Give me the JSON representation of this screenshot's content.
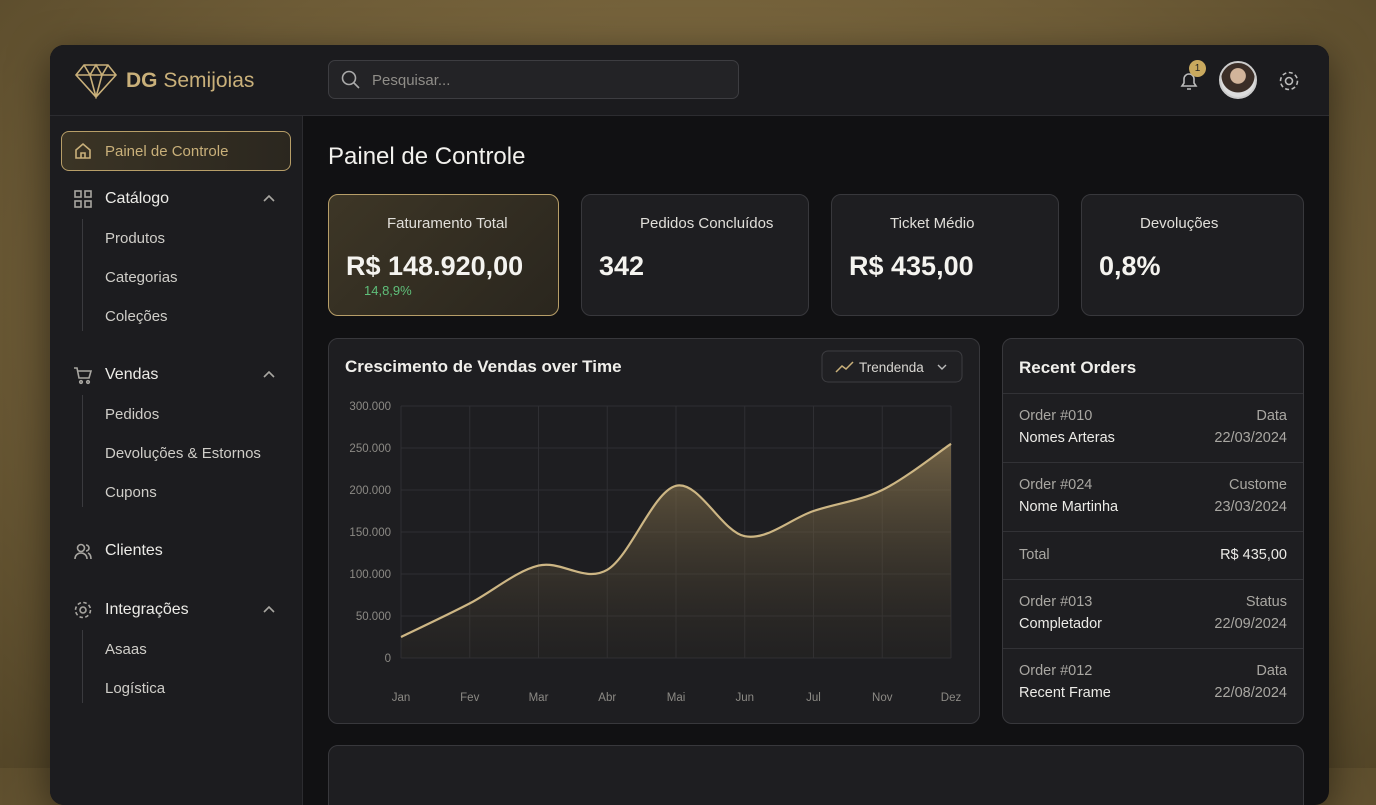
{
  "header": {
    "brand_bold": "DG",
    "brand": "Semijoias",
    "search_placeholder": "Pesquisar...",
    "notification_count": "1"
  },
  "sidebar": {
    "active": "Painel de Controle",
    "groups": [
      {
        "label": "Catálogo",
        "items": [
          "Produtos",
          "Categorias",
          "Coleções"
        ]
      },
      {
        "label": "Vendas",
        "items": [
          "Pedidos",
          "Devoluções & Estornos",
          "Cupons"
        ]
      },
      {
        "label": "Clientes",
        "items": []
      },
      {
        "label": "Integrações",
        "items": [
          "Asaas",
          "Logística"
        ]
      }
    ]
  },
  "page_title": "Painel de Controle",
  "kpis": [
    {
      "label": "Faturamento Total",
      "value": "R$ 148.920,00",
      "change": "14,8,9%"
    },
    {
      "label": "Pedidos Concluídos",
      "value": "342"
    },
    {
      "label": "Ticket Médio",
      "value": "R$ 435,00"
    },
    {
      "label": "Devoluções",
      "value": "0,8%"
    }
  ],
  "chart_data": {
    "type": "line",
    "title": "Crescimento de Vendas over Time",
    "control": "Trendenda",
    "categories": [
      "Jan",
      "Fev",
      "Mar",
      "Abr",
      "Mai",
      "Jun",
      "Jul",
      "Nov",
      "Dez"
    ],
    "series": [
      {
        "name": "Vendas",
        "color": "#cdb684",
        "values": [
          25000,
          65000,
          110000,
          105000,
          205000,
          145000,
          175000,
          200000,
          255000
        ]
      }
    ],
    "ylim": [
      0,
      300000
    ],
    "yticks": [
      0,
      {
        "value": 50000,
        "label": "50.000"
      },
      {
        "value": 100000,
        "label": "100.000"
      },
      {
        "value": 150000,
        "label": "150.000"
      },
      {
        "value": 200000,
        "label": "200.000"
      },
      {
        "value": 250000,
        "label": "250.000"
      },
      {
        "value": 300000,
        "label": "300.000"
      }
    ],
    "grid": true
  },
  "orders": {
    "title": "Recent Orders",
    "rows": [
      [
        "Order #010",
        "Data",
        "Nomes Arteras",
        "22/03/2024"
      ],
      [
        "Order #024",
        "Custome",
        "Nome Martinha",
        "23/03/2024"
      ],
      [
        "Total",
        "R$ 435,00"
      ],
      [
        "Order #013",
        "Status",
        "Completador",
        "22/09/2024"
      ],
      [
        "Order #012",
        "Data",
        "Recent Frame",
        "22/08/2024"
      ]
    ]
  }
}
